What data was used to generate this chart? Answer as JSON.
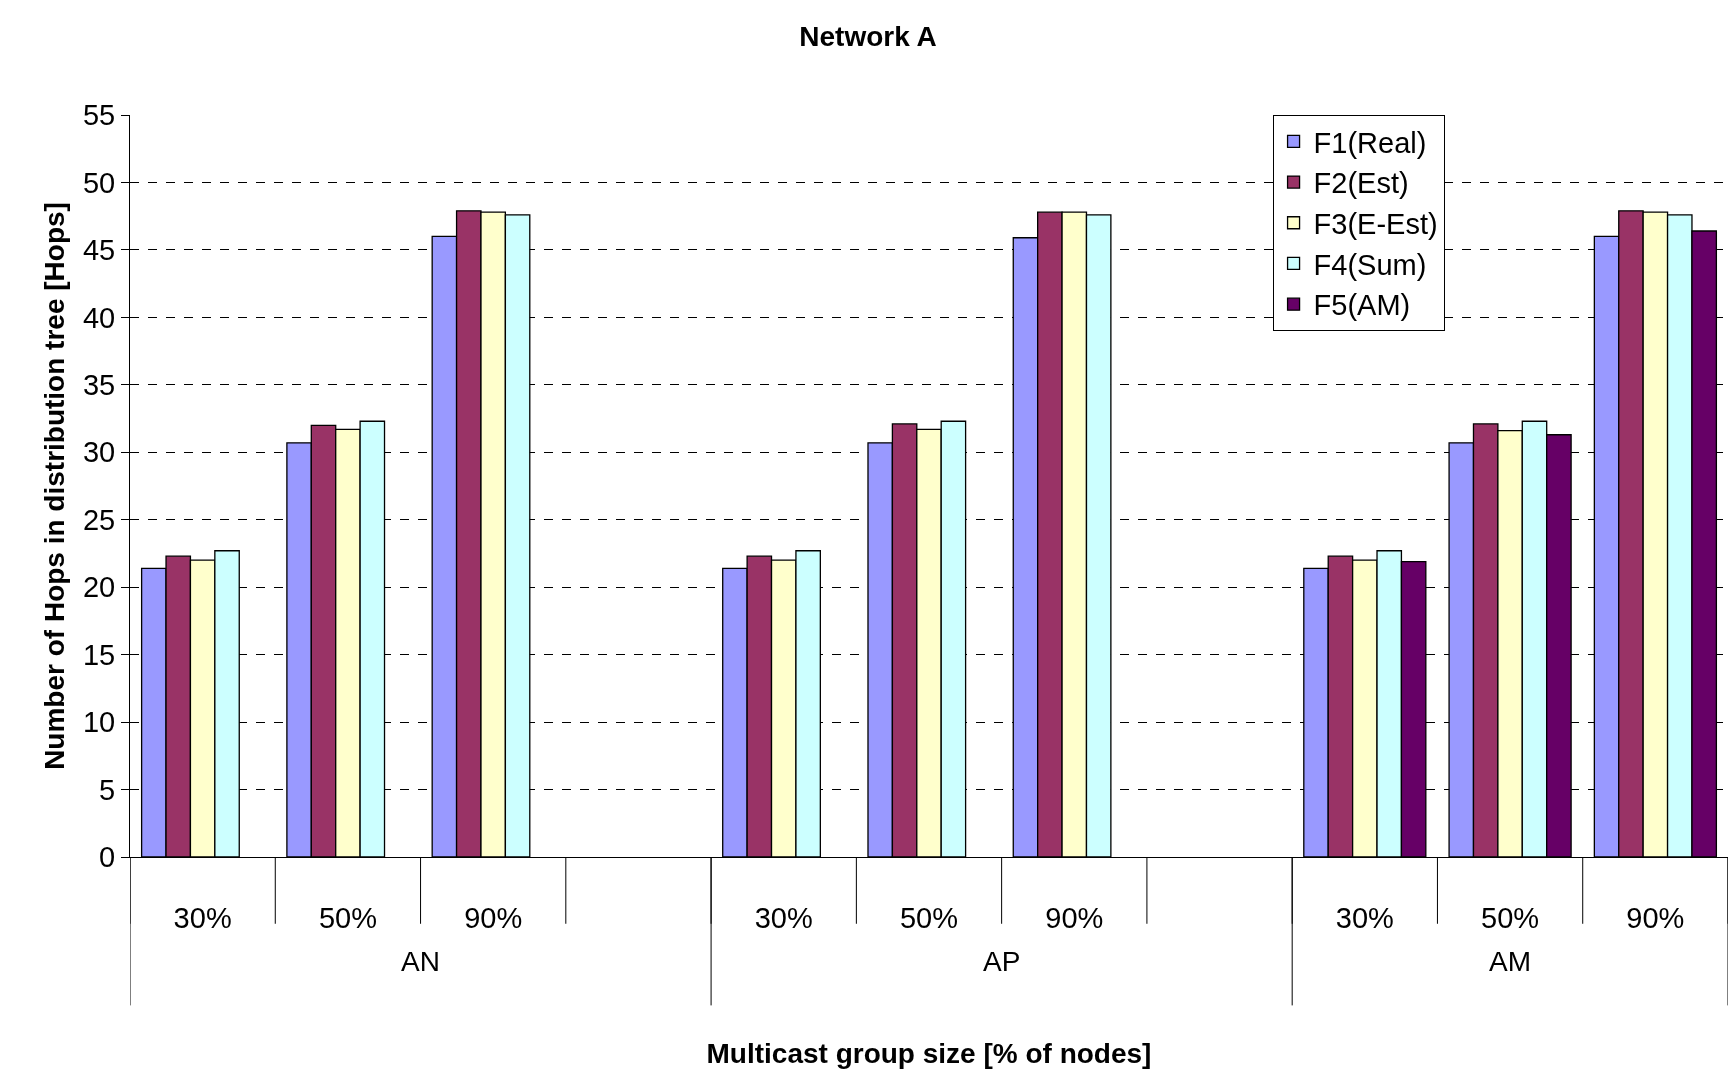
{
  "chart_data": {
    "type": "bar",
    "title": "Network A",
    "xlabel": "Multicast group size [% of nodes]",
    "ylabel": "Number of Hops in distribution tree [Hops]",
    "categories": [
      "30%",
      "50%",
      "90%",
      null,
      "30%",
      "50%",
      "90%",
      null,
      "30%",
      "50%",
      "90%"
    ],
    "annotations": [
      "AN",
      "AP",
      "AM"
    ],
    "series": [
      {
        "name": "F1(Real)",
        "color": "#9999ff",
        "values": [
          21.4,
          30.7,
          46.0,
          null,
          21.4,
          30.7,
          45.9,
          null,
          21.4,
          30.7,
          46.0
        ]
      },
      {
        "name": "F2(Est)",
        "color": "#993366",
        "values": [
          22.3,
          32.0,
          47.9,
          null,
          22.3,
          32.1,
          47.8,
          null,
          22.3,
          32.1,
          47.9
        ]
      },
      {
        "name": "F3(E-Est)",
        "color": "#ffffcc",
        "values": [
          22.0,
          31.7,
          47.8,
          null,
          22.0,
          31.7,
          47.8,
          null,
          22.0,
          31.6,
          47.8
        ]
      },
      {
        "name": "F4(Sum)",
        "color": "#ccffff",
        "values": [
          22.7,
          32.3,
          47.6,
          null,
          22.7,
          32.3,
          47.6,
          null,
          22.7,
          32.3,
          47.6
        ]
      },
      {
        "name": "F5(AM)",
        "color": "#660066",
        "values": [
          null,
          null,
          null,
          null,
          null,
          null,
          null,
          null,
          21.9,
          31.3,
          46.4
        ]
      }
    ],
    "ylim": [
      0,
      55
    ],
    "yticks": [
      0,
      5,
      10,
      15,
      20,
      25,
      30,
      35,
      40,
      45,
      50,
      55
    ],
    "grid": "y",
    "legend": "top right"
  }
}
